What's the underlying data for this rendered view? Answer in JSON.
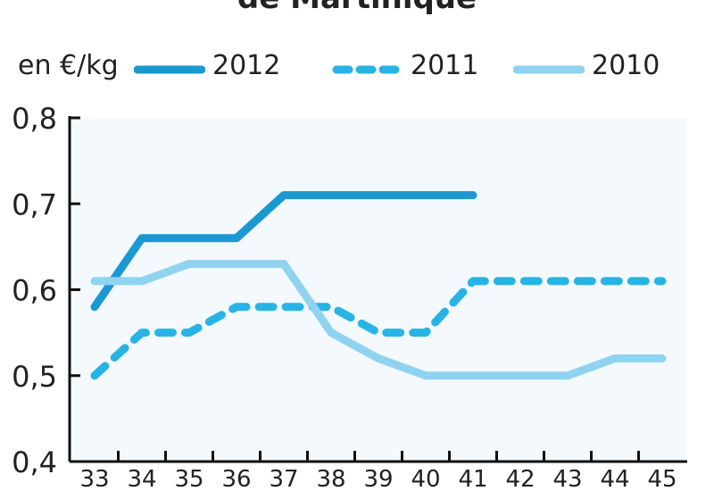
{
  "chart_data": {
    "type": "line",
    "title": "de Martinique",
    "ylabel": "en €/kg",
    "xlabel": "",
    "x": [
      33,
      34,
      35,
      36,
      37,
      38,
      39,
      40,
      41,
      42,
      43,
      44,
      45
    ],
    "x_tick_labels": [
      "33",
      "34",
      "35",
      "36",
      "37",
      "38",
      "39",
      "40",
      "41",
      "42",
      "43",
      "44",
      "45"
    ],
    "ylim": [
      0.4,
      0.8
    ],
    "y_ticks": [
      0.4,
      0.5,
      0.6,
      0.7,
      0.8
    ],
    "y_tick_labels": [
      "0,4",
      "0,5",
      "0,6",
      "0,7",
      "0,8"
    ],
    "grid": false,
    "legend_position": "top",
    "series": [
      {
        "name": "2012",
        "style": "solid",
        "color": "#1a98d2",
        "values": [
          0.58,
          0.66,
          0.66,
          0.66,
          0.71,
          0.71,
          0.71,
          0.71,
          0.71,
          null,
          null,
          null,
          null
        ]
      },
      {
        "name": "2011",
        "style": "dashed",
        "color": "#27b4e4",
        "values": [
          0.5,
          0.55,
          0.55,
          0.58,
          0.58,
          0.58,
          0.55,
          0.55,
          0.61,
          0.61,
          0.61,
          0.61,
          0.61
        ]
      },
      {
        "name": "2010",
        "style": "solid-light",
        "color": "#8fd3f0",
        "values": [
          0.61,
          0.61,
          0.63,
          0.63,
          0.63,
          0.55,
          0.52,
          0.5,
          0.5,
          0.5,
          0.5,
          0.52,
          0.52
        ]
      }
    ]
  },
  "colors": {
    "plot_background": "#f3f9fd",
    "axis": "#111111"
  }
}
